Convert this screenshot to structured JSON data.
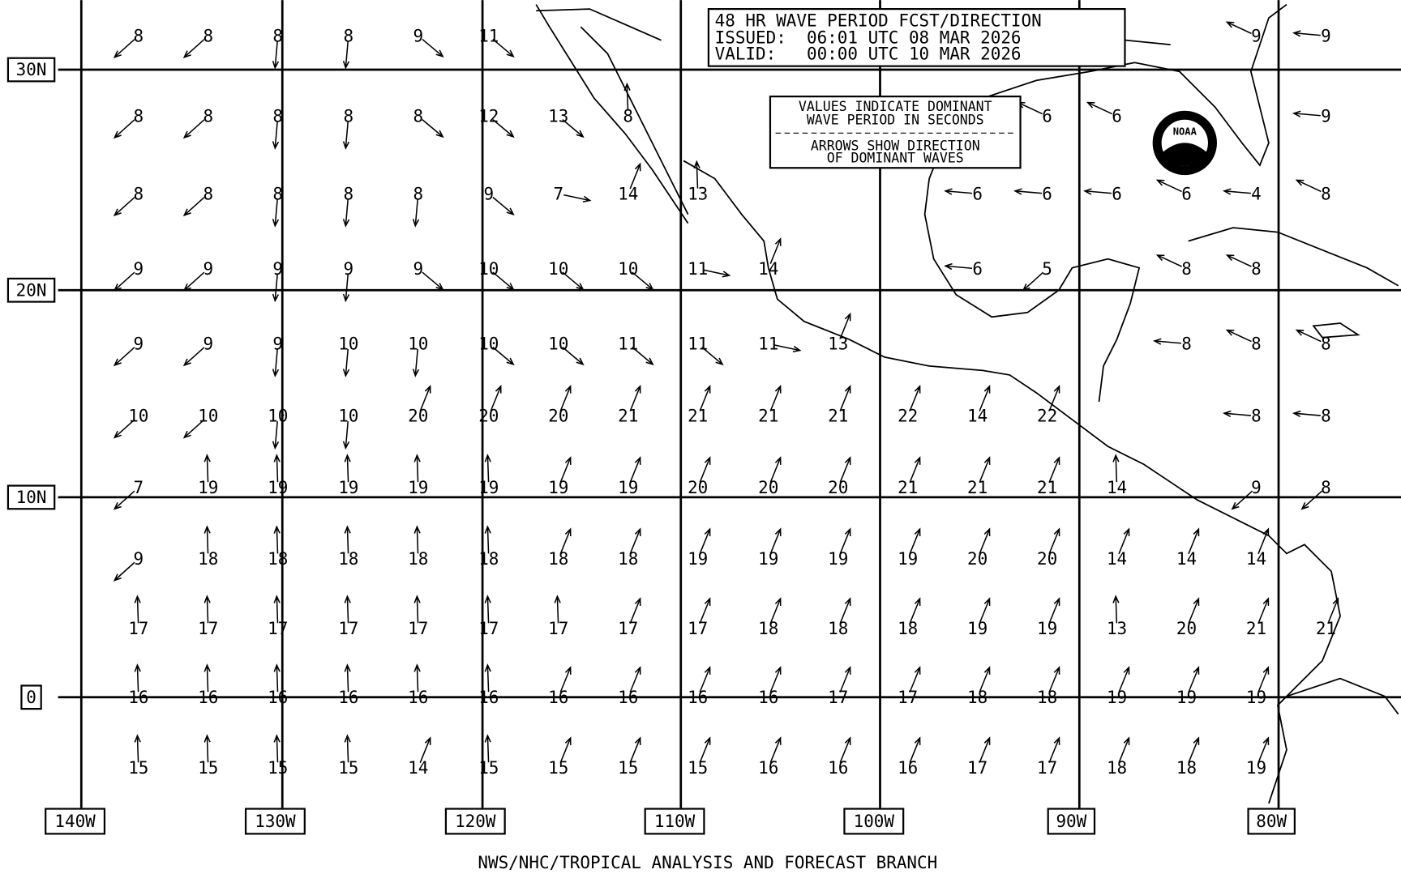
{
  "header": {
    "title": "48 HR WAVE PERIOD FCST/DIRECTION",
    "issued": "ISSUED:  06:01 UTC 08 MAR 2026",
    "valid": "VALID:   00:00 UTC 10 MAR 2026"
  },
  "legend_note": {
    "line1": "VALUES INDICATE DOMINANT",
    "line2": "WAVE PERIOD IN SECONDS",
    "line3": "ARROWS SHOW DIRECTION",
    "line4": "OF DOMINANT WAVES"
  },
  "logo_text": "NOAA",
  "latitude_labels": [
    "30N",
    "20N",
    "10N",
    "0"
  ],
  "longitude_labels": [
    "140W",
    "130W",
    "120W",
    "110W",
    "100W",
    "90W",
    "80W"
  ],
  "footer": "NWS/NHC/TROPICAL ANALYSIS AND FORECAST BRANCH",
  "wave_periods": [
    [
      8,
      8,
      8,
      8,
      9,
      11,
      null,
      null,
      null,
      null,
      null,
      null,
      null,
      null,
      null,
      null,
      9,
      9
    ],
    [
      8,
      8,
      8,
      8,
      8,
      12,
      13,
      8,
      null,
      null,
      null,
      null,
      null,
      6,
      6,
      null,
      null,
      9
    ],
    [
      8,
      8,
      8,
      8,
      8,
      9,
      7,
      14,
      13,
      null,
      null,
      null,
      6,
      6,
      6,
      6,
      4,
      8
    ],
    [
      9,
      9,
      9,
      9,
      9,
      10,
      10,
      10,
      11,
      14,
      null,
      null,
      6,
      5,
      null,
      8,
      8,
      null
    ],
    [
      9,
      9,
      9,
      10,
      10,
      10,
      10,
      11,
      11,
      11,
      13,
      null,
      null,
      null,
      null,
      8,
      8,
      8
    ],
    [
      10,
      10,
      10,
      10,
      20,
      20,
      20,
      21,
      21,
      21,
      21,
      22,
      14,
      22,
      null,
      null,
      8,
      8
    ],
    [
      7,
      19,
      19,
      19,
      19,
      19,
      19,
      19,
      20,
      20,
      20,
      21,
      21,
      21,
      14,
      null,
      9,
      8
    ],
    [
      9,
      18,
      18,
      18,
      18,
      18,
      18,
      18,
      19,
      19,
      19,
      19,
      20,
      20,
      14,
      14,
      14,
      null
    ],
    [
      17,
      17,
      17,
      17,
      17,
      17,
      17,
      17,
      17,
      18,
      18,
      18,
      19,
      19,
      13,
      20,
      21,
      21
    ],
    [
      16,
      16,
      16,
      16,
      16,
      16,
      16,
      16,
      16,
      16,
      17,
      17,
      18,
      18,
      19,
      19,
      19,
      null
    ],
    [
      15,
      15,
      15,
      15,
      14,
      15,
      15,
      15,
      15,
      16,
      16,
      16,
      17,
      17,
      18,
      18,
      19,
      null
    ]
  ]
}
